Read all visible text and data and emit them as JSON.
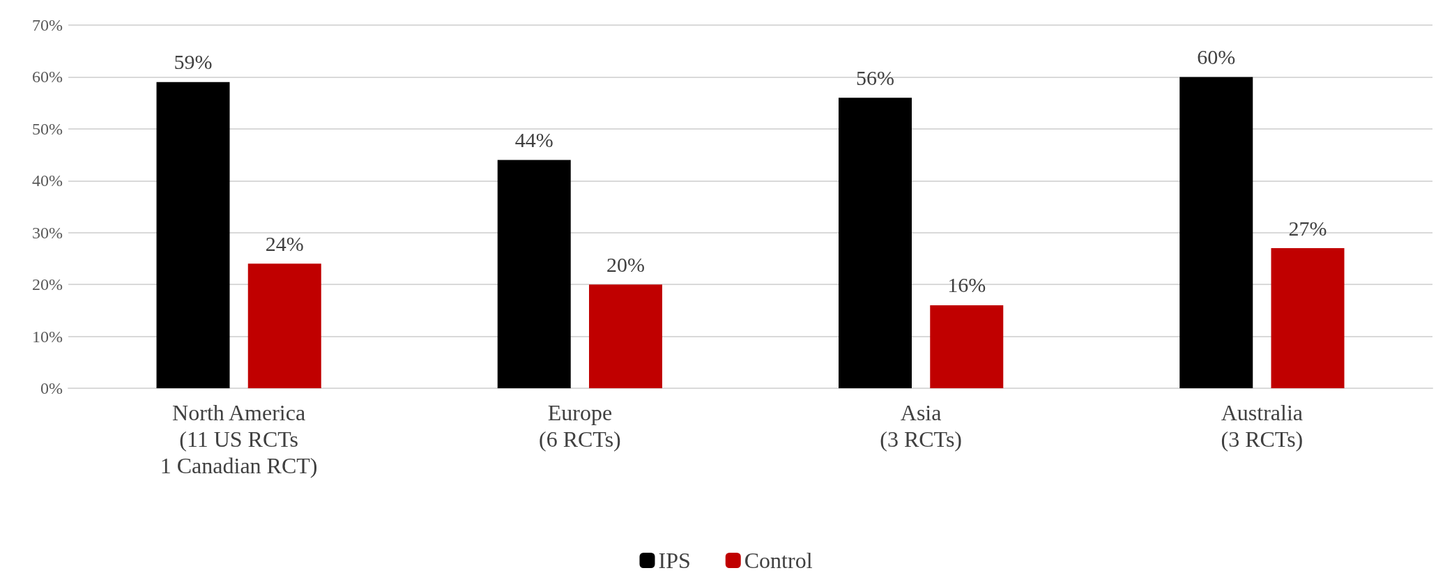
{
  "chart_data": {
    "type": "bar",
    "categories": [
      "North America\n(11 US RCTs\n1 Canadian RCT)",
      "Europe\n(6 RCTs)",
      "Asia\n(3 RCTs)",
      "Australia\n(3 RCTs)"
    ],
    "series": [
      {
        "name": "IPS",
        "color": "#000000",
        "values": [
          59,
          44,
          56,
          60
        ],
        "value_labels": [
          "59%",
          "44%",
          "56%",
          "60%"
        ]
      },
      {
        "name": "Control",
        "color": "#c00000",
        "values": [
          24,
          20,
          16,
          27
        ],
        "value_labels": [
          "24%",
          "20%",
          "16%",
          "27%"
        ]
      }
    ],
    "ylim": [
      0,
      70
    ],
    "yticks": [
      {
        "value": 0,
        "label": "0%"
      },
      {
        "value": 10,
        "label": "10%"
      },
      {
        "value": 20,
        "label": "20%"
      },
      {
        "value": 30,
        "label": "30%"
      },
      {
        "value": 40,
        "label": "40%"
      },
      {
        "value": 50,
        "label": "50%"
      },
      {
        "value": 60,
        "label": "60%"
      },
      {
        "value": 70,
        "label": "70%"
      }
    ],
    "grid": "y",
    "legend": "bottom"
  }
}
